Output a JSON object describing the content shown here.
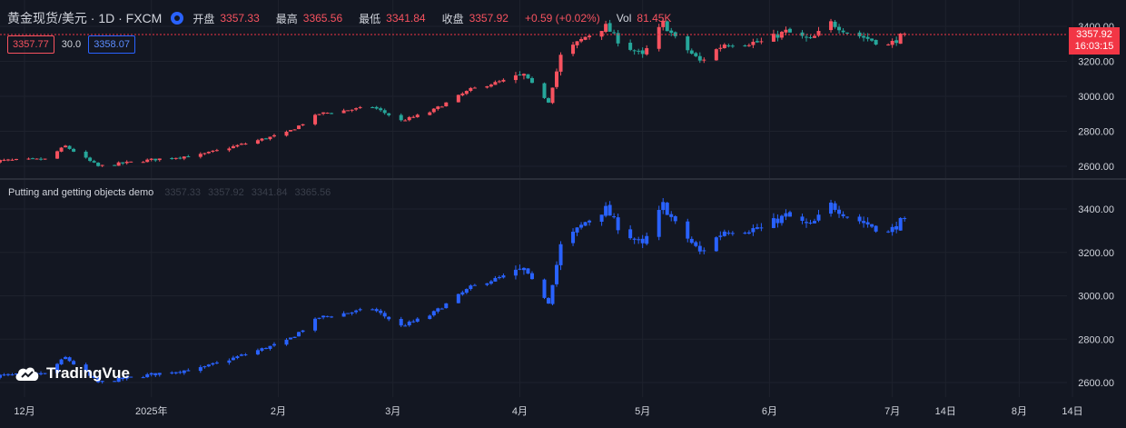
{
  "header": {
    "symbol": "黄金现货/美元 · 1D · FXCM",
    "open_label": "开盘",
    "open": "3357.33",
    "high_label": "最高",
    "high": "3365.56",
    "low_label": "最低",
    "low": "3341.84",
    "close_label": "收盘",
    "close": "3357.92",
    "change": "+0.59 (+0.02%)",
    "vol_label": "Vol",
    "vol": "81.45K"
  },
  "indicators": {
    "box1": "3357.77",
    "plain": "30.0",
    "box2": "3358.07"
  },
  "sub_pane": {
    "name": "Putting and getting objects demo",
    "values": [
      "3357.33",
      "3357.92",
      "3341.84",
      "3365.56"
    ]
  },
  "last_price": {
    "price": "3357.92",
    "time": "16:03:15"
  },
  "logo": "TradingVue",
  "colors": {
    "up": "#f7525f",
    "down": "#26a69a",
    "sub": "#2962ff",
    "bg": "#131722",
    "grid": "#1e222d"
  },
  "chart_data": {
    "type": "candlestick",
    "main_y_ticks": [
      "3400.00",
      "3200.00",
      "3000.00",
      "2800.00",
      "2600.00"
    ],
    "main_y_tick_values": [
      3400,
      3200,
      3000,
      2800,
      2600
    ],
    "sub_y_ticks": [
      "3400.00",
      "3200.00",
      "3000.00",
      "2800.00",
      "2600.00"
    ],
    "sub_y_tick_values": [
      3400,
      3200,
      3000,
      2800,
      2600
    ],
    "x_ticks": [
      "12月",
      "2025年",
      "2月",
      "3月",
      "4月",
      "5月",
      "6月",
      "7月",
      "14日",
      "8月",
      "14日"
    ],
    "x_tick_dates": [
      "2024-12-01",
      "2025-01-01",
      "2025-02-01",
      "2025-03-01",
      "2025-04-01",
      "2025-05-01",
      "2025-06-01",
      "2025-07-01",
      "2025-07-14",
      "2025-08-01",
      "2025-08-14"
    ],
    "first_date": "2024-11-22",
    "last_date": "2025-07-04",
    "anchors": [
      [
        "2024-11-22",
        2630
      ],
      [
        "2024-12-06",
        2640
      ],
      [
        "2024-12-11",
        2715
      ],
      [
        "2024-12-19",
        2600
      ],
      [
        "2025-01-02",
        2640
      ],
      [
        "2025-01-13",
        2665
      ],
      [
        "2025-02-03",
        2790
      ],
      [
        "2025-02-11",
        2900
      ],
      [
        "2025-02-24",
        2940
      ],
      [
        "2025-03-03",
        2860
      ],
      [
        "2025-03-10",
        2910
      ],
      [
        "2025-03-20",
        3040
      ],
      [
        "2025-04-02",
        3120
      ],
      [
        "2025-04-08",
        2970
      ],
      [
        "2025-04-11",
        3230
      ],
      [
        "2025-04-17",
        3340
      ],
      [
        "2025-04-22",
        3400
      ],
      [
        "2025-04-25",
        3320
      ],
      [
        "2025-05-01",
        3230
      ],
      [
        "2025-05-06",
        3420
      ],
      [
        "2025-05-09",
        3330
      ],
      [
        "2025-05-15",
        3200
      ],
      [
        "2025-05-21",
        3300
      ],
      [
        "2025-05-30",
        3310
      ],
      [
        "2025-06-05",
        3370
      ],
      [
        "2025-06-11",
        3320
      ],
      [
        "2025-06-16",
        3420
      ],
      [
        "2025-06-20",
        3370
      ],
      [
        "2025-06-25",
        3330
      ],
      [
        "2025-06-30",
        3290
      ],
      [
        "2025-07-04",
        3358
      ]
    ]
  }
}
